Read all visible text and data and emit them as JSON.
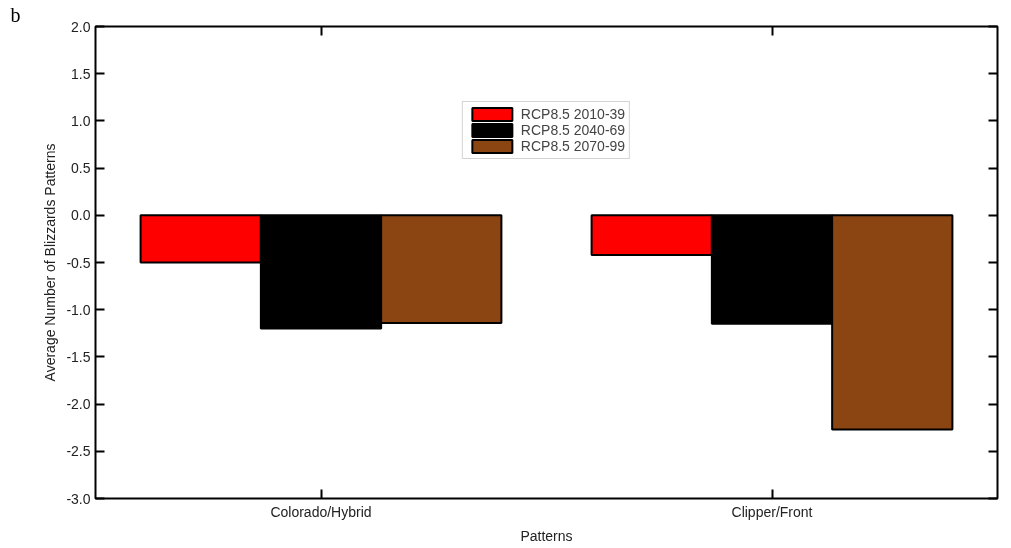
{
  "chart_data": {
    "type": "bar",
    "xlabel": "Patterns",
    "ylabel": "Average Number of Blizzards Patterns",
    "annotations": [
      "b"
    ],
    "categories": [
      "Colorado/Hybrid",
      "Clipper/Front"
    ],
    "series": [
      {
        "name": "RCP8.5 2010-39",
        "color": "#ff0000",
        "values": [
          -0.5,
          -0.42
        ]
      },
      {
        "name": "RCP8.5 2040-69",
        "color": "#000000",
        "values": [
          -1.2,
          -1.15
        ]
      },
      {
        "name": "RCP8.5 2070-99",
        "color": "#8b4513",
        "values": [
          -1.14,
          -2.27
        ]
      }
    ],
    "ylim": [
      -3.0,
      2.0
    ],
    "yticks": [
      {
        "value": -3.0,
        "label": "-3.0"
      },
      {
        "value": -2.5,
        "label": "-2.5"
      },
      {
        "value": -2.0,
        "label": "-2.0"
      },
      {
        "value": -1.5,
        "label": "-1.5"
      },
      {
        "value": -1.0,
        "label": "-1.0"
      },
      {
        "value": -0.5,
        "label": "-0.5"
      },
      {
        "value": 0.0,
        "label": "0.0"
      },
      {
        "value": 0.5,
        "label": "0.5"
      },
      {
        "value": 1.0,
        "label": "1.0"
      },
      {
        "value": 1.5,
        "label": "1.5"
      },
      {
        "value": 2.0,
        "label": "2.0"
      }
    ],
    "grid": false,
    "legend": "top"
  }
}
